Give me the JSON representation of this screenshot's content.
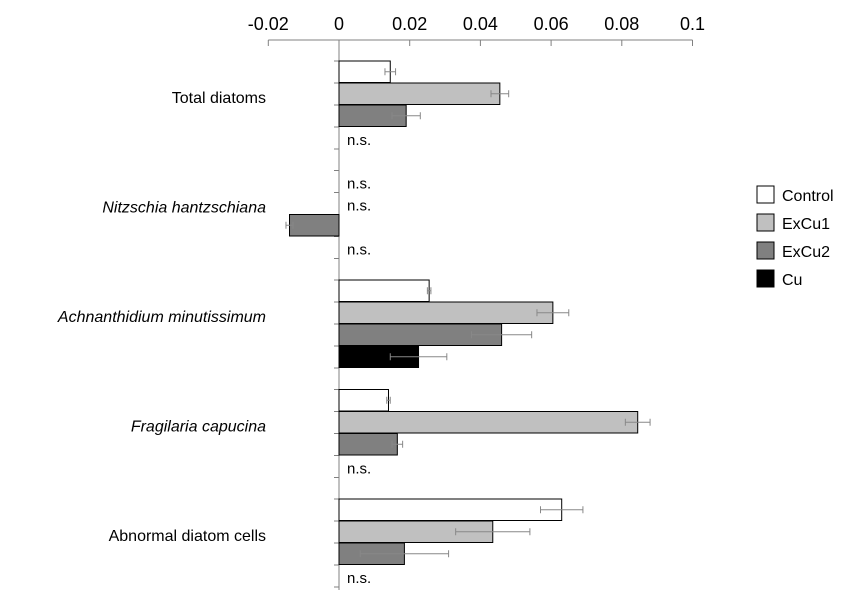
{
  "chart_data": {
    "type": "bar",
    "orientation": "horizontal",
    "title": "",
    "xlabel": "",
    "ylabel": "",
    "xlim": [
      -0.02,
      0.1
    ],
    "x_ticks": [
      -0.02,
      0,
      0.02,
      0.04,
      0.06,
      0.08,
      0.1
    ],
    "x_tick_labels": [
      "-0.02",
      "0",
      "0.02",
      "0.04",
      "0.06",
      "0.08",
      "0.1"
    ],
    "grid": false,
    "legend_position": "right",
    "not_significant_label": "n.s.",
    "series": [
      {
        "name": "Control",
        "color": "#ffffff"
      },
      {
        "name": "ExCu1",
        "color": "#c0c0c0"
      },
      {
        "name": "ExCu2",
        "color": "#808080"
      },
      {
        "name": "Cu",
        "color": "#000000"
      }
    ],
    "groups": [
      {
        "category": "Total diatoms",
        "italic": false,
        "values": [
          0.0145,
          0.0455,
          0.019,
          null
        ],
        "errors": [
          0.0015,
          0.0025,
          0.004,
          null
        ],
        "not_significant": [
          false,
          false,
          false,
          true
        ]
      },
      {
        "category": "Nitzschia hantzschiana",
        "italic": true,
        "values": [
          null,
          null,
          -0.014,
          null
        ],
        "errors": [
          null,
          null,
          0.001,
          null
        ],
        "not_significant": [
          true,
          true,
          false,
          true
        ]
      },
      {
        "category": "Achnanthidium minutissimum",
        "italic": true,
        "values": [
          0.0255,
          0.0605,
          0.046,
          0.0225
        ],
        "errors": [
          0.0005,
          0.0045,
          0.0085,
          0.008
        ],
        "not_significant": [
          false,
          false,
          false,
          false
        ]
      },
      {
        "category": "Fragilaria capucina",
        "italic": true,
        "values": [
          0.014,
          0.0845,
          0.0165,
          null
        ],
        "errors": [
          0.0005,
          0.0035,
          0.0015,
          null
        ],
        "not_significant": [
          false,
          false,
          false,
          true
        ]
      },
      {
        "category": "Abnormal diatom cells",
        "italic": false,
        "values": [
          0.063,
          0.0435,
          0.0185,
          null
        ],
        "errors": [
          0.006,
          0.0105,
          0.0125,
          null
        ],
        "not_significant": [
          false,
          false,
          false,
          true
        ]
      }
    ]
  }
}
